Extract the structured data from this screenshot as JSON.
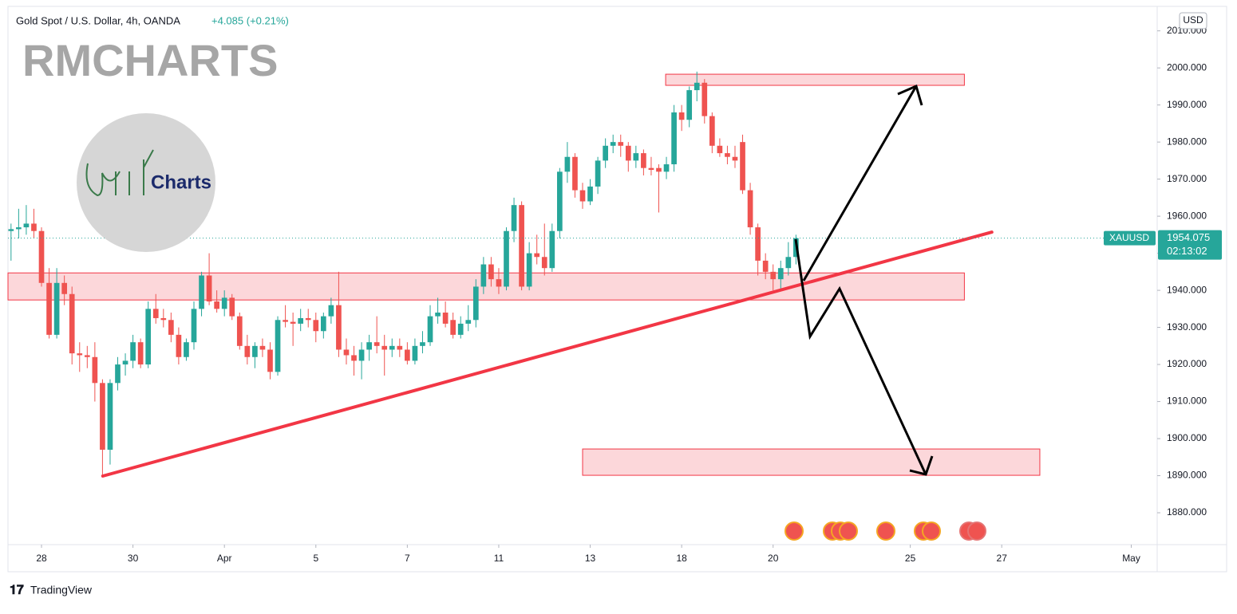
{
  "chart_data": {
    "type": "candlestick",
    "title": "Gold Spot / U.S. Dollar, 4h, OANDA",
    "change": "+4.085 (+0.21%)",
    "watermark": "RMCHARTS",
    "logo_text": "Charts",
    "currency": "USD",
    "symbol": "XAUUSD",
    "last_price": 1954.075,
    "countdown": "02:13:02",
    "footer": "TradingView",
    "color_up": "#26a69a",
    "color_down": "#ef5350",
    "xlim": [
      -0.4,
      150.4
    ],
    "ylim": [
      1871.4,
      2016.6
    ],
    "xticks": [
      {
        "value": 4,
        "label": "28"
      },
      {
        "value": 16,
        "label": "30"
      },
      {
        "value": 28,
        "label": "Apr"
      },
      {
        "value": 40,
        "label": "5"
      },
      {
        "value": 52,
        "label": "7"
      },
      {
        "value": 64,
        "label": "11"
      },
      {
        "value": 76,
        "label": "13"
      },
      {
        "value": 88,
        "label": "18"
      },
      {
        "value": 100,
        "label": "20"
      },
      {
        "value": 118,
        "label": "25"
      },
      {
        "value": 130,
        "label": "27"
      },
      {
        "value": 147,
        "label": "May"
      }
    ],
    "yticks": [
      {
        "value": 1880,
        "label": "1880.000"
      },
      {
        "value": 1890,
        "label": "1890.000"
      },
      {
        "value": 1900,
        "label": "1900.000"
      },
      {
        "value": 1910,
        "label": "1910.000"
      },
      {
        "value": 1920,
        "label": "1920.000"
      },
      {
        "value": 1930,
        "label": "1930.000"
      },
      {
        "value": 1940,
        "label": "1940.000"
      },
      {
        "value": 1950,
        "label": "1950.000"
      },
      {
        "value": 1960,
        "label": "1960.000"
      },
      {
        "value": 1970,
        "label": "1970.000"
      },
      {
        "value": 1980,
        "label": "1980.000"
      },
      {
        "value": 1990,
        "label": "1990.000"
      },
      {
        "value": 2000,
        "label": "2000.000"
      },
      {
        "value": 2010,
        "label": "2010.000"
      }
    ],
    "open": [
      1956,
      1956.5,
      1957,
      1958,
      1956,
      1942,
      1928,
      1942,
      1939,
      1923,
      1922.5,
      1922,
      1915,
      1897,
      1915,
      1920,
      1921,
      1926,
      1920,
      1935,
      1932.5,
      1932,
      1928,
      1922,
      1926,
      1935,
      1944,
      1937,
      1935,
      1938,
      1933,
      1925,
      1922,
      1925,
      1924,
      1918,
      1932,
      1931.5,
      1931,
      1932.5,
      1932,
      1929,
      1933,
      1936,
      1924,
      1922.5,
      1921,
      1924,
      1926,
      1925,
      1924,
      1925,
      1924,
      1921,
      1925,
      1926,
      1933,
      1934,
      1932,
      1928,
      1931,
      1932,
      1941,
      1947,
      1943,
      1941,
      1956,
      1963,
      1941,
      1950,
      1949,
      1946,
      1956,
      1972,
      1976,
      1967,
      1964,
      1968,
      1975,
      1979,
      1980,
      1979,
      1975,
      1977,
      1973,
      1973,
      1972,
      1974,
      1988,
      1986,
      1994,
      1996,
      1987,
      1979,
      1977,
      1976,
      1980,
      1967,
      1957,
      1948,
      1945,
      1943,
      1946,
      1949
    ],
    "high": [
      1958,
      1962,
      1963,
      1962,
      1957,
      1946,
      1946,
      1944,
      1941,
      1926,
      1925,
      1926,
      1916,
      1916,
      1922,
      1923,
      1928,
      1927,
      1937,
      1939,
      1935,
      1934,
      1930,
      1927,
      1937,
      1945,
      1950,
      1940,
      1940,
      1939,
      1934,
      1928,
      1926,
      1927,
      1926,
      1933,
      1936,
      1934,
      1935,
      1935,
      1934,
      1934,
      1938,
      1945,
      1927,
      1925,
      1926,
      1928,
      1933,
      1928,
      1927,
      1927,
      1926,
      1927,
      1929,
      1936,
      1938,
      1937,
      1934,
      1933,
      1936,
      1943,
      1949,
      1949,
      1946,
      1957,
      1965,
      1964,
      1953,
      1955,
      1958,
      1958,
      1973,
      1980,
      1977,
      1969,
      1970,
      1976,
      1981,
      1982,
      1982,
      1980,
      1979,
      1978,
      1976,
      1974,
      1976,
      1990,
      1990,
      1995,
      1999,
      1997,
      1988,
      1981,
      1979,
      1979,
      1982,
      1969,
      1958,
      1950,
      1947,
      1948,
      1953,
      1955
    ],
    "low": [
      1948,
      1954,
      1955,
      1954,
      1941,
      1927,
      1927,
      1936,
      1920,
      1918,
      1919,
      1910,
      1890,
      1893,
      1913,
      1917,
      1919,
      1919,
      1919,
      1931,
      1930,
      1926,
      1920,
      1921,
      1924,
      1933,
      1936,
      1934,
      1933,
      1932,
      1924,
      1920,
      1919,
      1922,
      1916,
      1917,
      1930,
      1925,
      1929,
      1930,
      1926,
      1927,
      1931,
      1922,
      1920,
      1917,
      1916,
      1921,
      1923,
      1917,
      1922,
      1922,
      1920,
      1920,
      1923,
      1925,
      1931,
      1930,
      1927,
      1927,
      1929,
      1930,
      1939,
      1941,
      1939,
      1940,
      1953,
      1940,
      1940,
      1947,
      1944,
      1945,
      1954,
      1969,
      1965,
      1962,
      1963,
      1966,
      1973,
      1977,
      1976,
      1972,
      1973,
      1971,
      1971,
      1961,
      1970,
      1972,
      1983,
      1984,
      1991,
      1985,
      1977,
      1976,
      1974,
      1973,
      1966,
      1955,
      1944,
      1943,
      1940,
      1940,
      1944,
      1947
    ],
    "close": [
      1956.5,
      1957,
      1958,
      1956,
      1942,
      1928,
      1942,
      1939,
      1923,
      1922.5,
      1922,
      1915,
      1897,
      1915,
      1920,
      1921,
      1926,
      1920,
      1935,
      1932.5,
      1932,
      1928,
      1922,
      1926,
      1935,
      1944,
      1937,
      1935,
      1938,
      1933,
      1925,
      1922,
      1925,
      1924,
      1918,
      1932,
      1931.5,
      1931,
      1932.5,
      1932,
      1929,
      1933,
      1936,
      1924,
      1922.5,
      1921,
      1924,
      1926,
      1925,
      1924,
      1925,
      1924,
      1921,
      1925,
      1926,
      1933,
      1934,
      1931,
      1928,
      1931,
      1932,
      1941,
      1947,
      1943,
      1941,
      1956,
      1963,
      1941,
      1950,
      1949,
      1946,
      1956,
      1972,
      1976,
      1967,
      1964,
      1968,
      1975,
      1979,
      1980,
      1979,
      1975,
      1977,
      1973,
      1972.5,
      1972,
      1974,
      1988,
      1986,
      1994,
      1996,
      1987,
      1979,
      1977,
      1976,
      1975,
      1967,
      1957,
      1948,
      1945,
      1943,
      1946,
      1949,
      1954.075
    ],
    "zones": [
      {
        "top": 1998.3,
        "bottom": 1995.3,
        "start": 85.9,
        "end": 125.1
      },
      {
        "top": 1944.7,
        "bottom": 1937.4,
        "start": -0.4,
        "end": 125.1
      },
      {
        "top": 1897.2,
        "bottom": 1890.1,
        "start": 75,
        "end": 135
      }
    ],
    "trendline": {
      "x": [
        12.04,
        128.7
      ],
      "y": [
        1889.9,
        1955.7
      ]
    }
  }
}
